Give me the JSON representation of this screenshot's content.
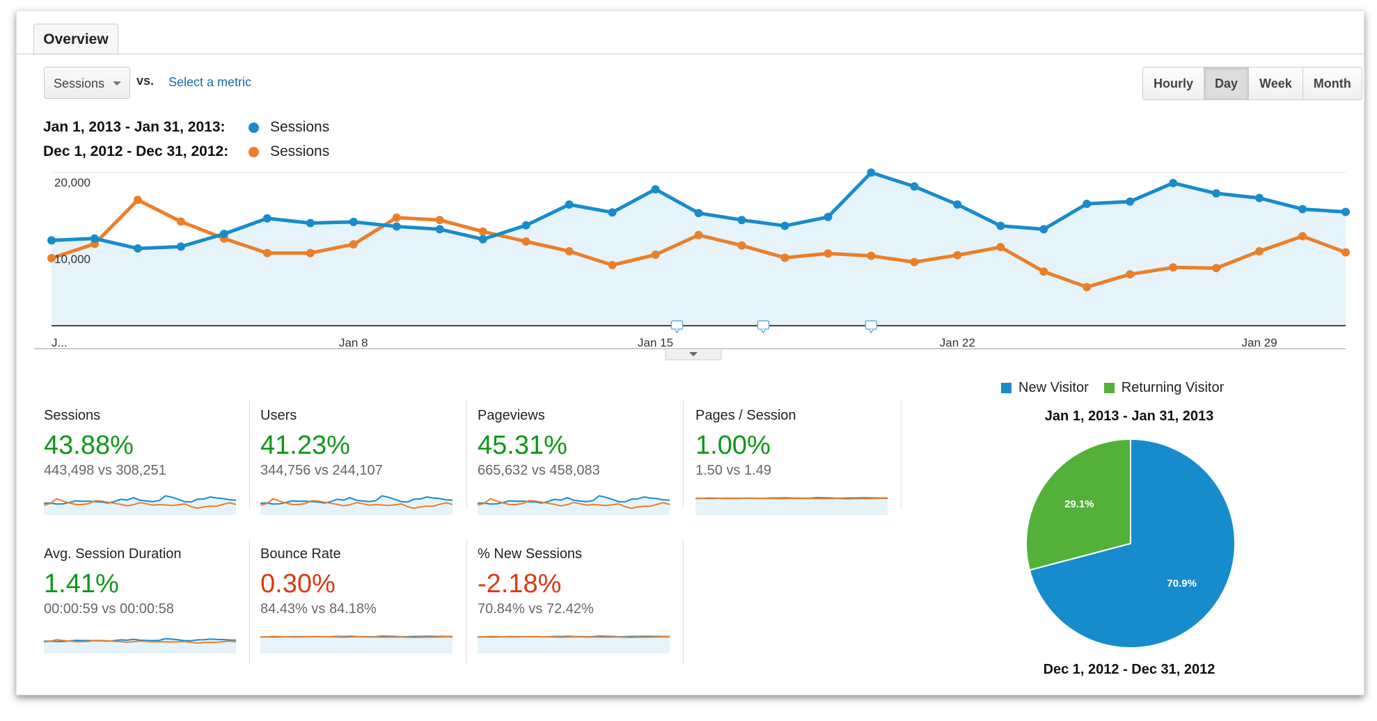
{
  "tabs": [
    {
      "label": "Overview"
    }
  ],
  "controls": {
    "metric_select": "Sessions",
    "vs_label": "vs.",
    "select_metric_link": "Select a metric",
    "granularity": [
      {
        "label": "Hourly",
        "active": false
      },
      {
        "label": "Day",
        "active": true
      },
      {
        "label": "Week",
        "active": false
      },
      {
        "label": "Month",
        "active": false
      }
    ]
  },
  "legend": [
    {
      "range": "Jan 1, 2013 - Jan 31, 2013:",
      "series": "Sessions",
      "color": "#168ccc"
    },
    {
      "range": "Dec 1, 2012 - Dec 31, 2012:",
      "series": "Sessions",
      "color": "#ed7e28"
    }
  ],
  "chart_data": [
    {
      "type": "line",
      "y_ticks": [
        "20,000",
        "10,000"
      ],
      "ylim": [
        0,
        20000
      ],
      "x_tick_labels": [
        {
          "day": 1,
          "label": "J..."
        },
        {
          "day": 8,
          "label": "Jan 8"
        },
        {
          "day": 15,
          "label": "Jan 15"
        },
        {
          "day": 22,
          "label": "Jan 22"
        },
        {
          "day": 29,
          "label": "Jan 29"
        }
      ],
      "x": [
        1,
        2,
        3,
        4,
        5,
        6,
        7,
        8,
        9,
        10,
        11,
        12,
        13,
        14,
        15,
        16,
        17,
        18,
        19,
        20,
        21,
        22,
        23,
        24,
        25,
        26,
        27,
        28,
        29,
        30,
        31
      ],
      "series": [
        {
          "name": "Sessions",
          "period": "Jan 1, 2013 - Jan 31, 2013",
          "color": "#168ccc",
          "area": true,
          "values": [
            11150,
            11390,
            10090,
            10330,
            11990,
            14020,
            13410,
            13560,
            12960,
            12600,
            11300,
            13110,
            15830,
            14800,
            17820,
            14710,
            13810,
            13050,
            14200,
            20000,
            18190,
            15830,
            13050,
            12600,
            15920,
            16220,
            18640,
            17280,
            16680,
            15230,
            14860
          ]
        },
        {
          "name": "Sessions",
          "period": "Dec 1, 2012 - Dec 31, 2012",
          "color": "#ed7e28",
          "area": false,
          "values": [
            8820,
            10690,
            16430,
            13600,
            11390,
            9490,
            9490,
            10630,
            14110,
            13810,
            12300,
            11000,
            9730,
            7920,
            9270,
            11840,
            10480,
            8880,
            9430,
            9120,
            8310,
            9210,
            10270,
            7070,
            5050,
            6710,
            7610,
            7520,
            9730,
            11690,
            9580
          ]
        }
      ],
      "annotation_markers": 3,
      "grid": true
    },
    {
      "type": "pie",
      "legend": [
        {
          "label": "New Visitor",
          "color": "#168ccc"
        },
        {
          "label": "Returning Visitor",
          "color": "#53b13a"
        }
      ],
      "title_top": "Jan 1, 2013 - Jan 31, 2013",
      "title_bottom": "Dec 1, 2012 - Dec 31, 2012",
      "slices": [
        {
          "label": "New Visitor",
          "value": 70.9,
          "text": "70.9%",
          "color": "#168ccc"
        },
        {
          "label": "Returning Visitor",
          "value": 29.1,
          "text": "29.1%",
          "color": "#53b13a"
        }
      ]
    }
  ],
  "metrics": [
    {
      "title": "Sessions",
      "change": "43.88%",
      "trend": "up",
      "compare": "443,498 vs 308,251"
    },
    {
      "title": "Users",
      "change": "41.23%",
      "trend": "up",
      "compare": "344,756 vs 244,107"
    },
    {
      "title": "Pageviews",
      "change": "45.31%",
      "trend": "up",
      "compare": "665,632 vs 458,083"
    },
    {
      "title": "Pages / Session",
      "change": "1.00%",
      "trend": "up",
      "compare": "1.50 vs 1.49"
    },
    {
      "title": "Avg. Session Duration",
      "change": "1.41%",
      "trend": "up",
      "compare": "00:00:59 vs 00:00:58"
    },
    {
      "title": "Bounce Rate",
      "change": "0.30%",
      "trend": "down",
      "compare": "84.43% vs 84.18%"
    },
    {
      "title": "% New Sessions",
      "change": "-2.18%",
      "trend": "down",
      "compare": "70.84% vs 72.42%"
    }
  ],
  "colors": {
    "positive": "#109618",
    "negative": "#dc3912",
    "area_fill": "#e6f3fa",
    "link": "#1a6bb5"
  }
}
